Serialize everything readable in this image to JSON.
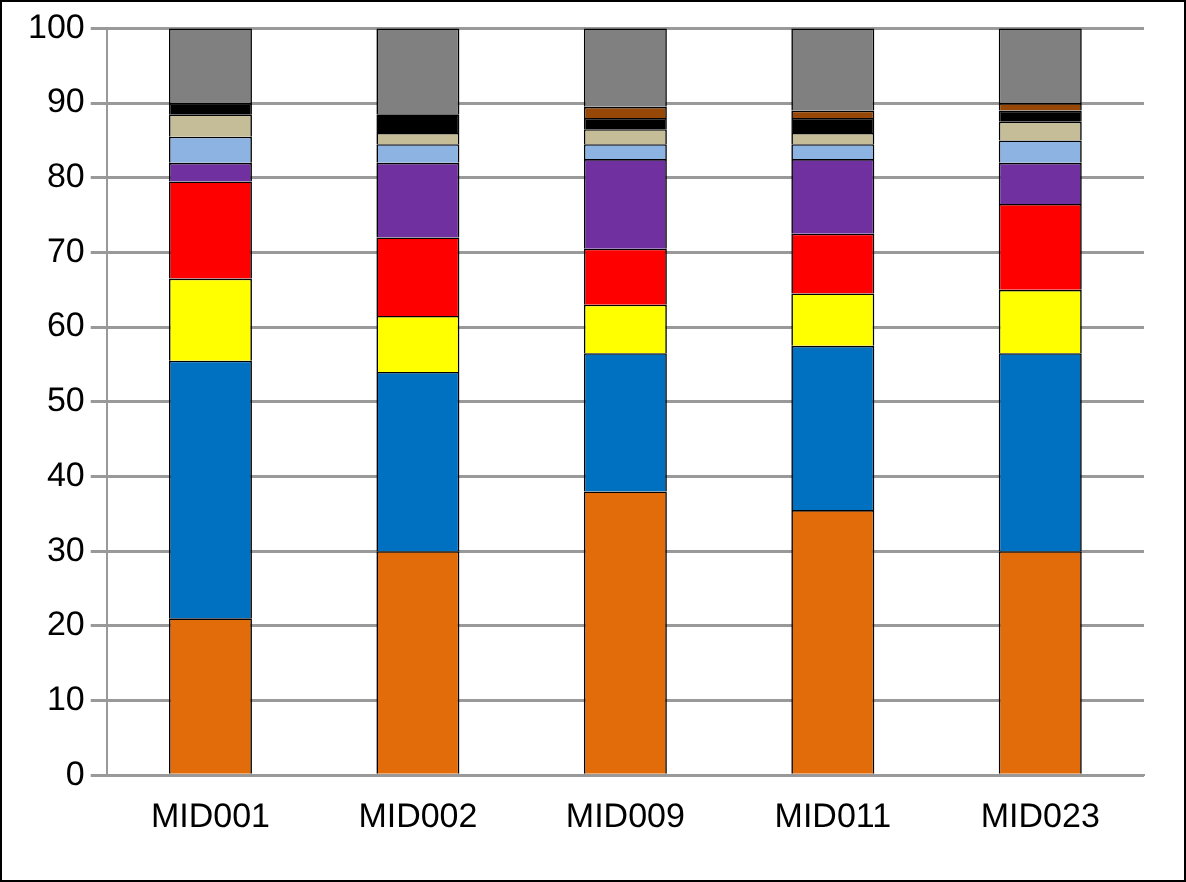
{
  "chart_data": {
    "type": "bar",
    "stacked": true,
    "categories": [
      "MID001",
      "MID002",
      "MID009",
      "MID011",
      "MID023"
    ],
    "series": [
      {
        "color": "#e36c0a",
        "values": [
          21,
          30,
          38,
          35.5,
          30
        ]
      },
      {
        "color": "#0070c0",
        "values": [
          34.5,
          24,
          18.5,
          22,
          26.5
        ]
      },
      {
        "color": "#ffff00",
        "values": [
          11,
          7.5,
          6.5,
          7,
          8.5
        ]
      },
      {
        "color": "#ff0000",
        "values": [
          13,
          10.5,
          7.5,
          8,
          11.5
        ]
      },
      {
        "color": "#7030a0",
        "values": [
          2.5,
          10,
          12,
          10,
          5.5
        ]
      },
      {
        "color": "#8db3e2",
        "values": [
          3.5,
          2.5,
          2,
          2,
          3
        ]
      },
      {
        "color": "#c4bd97",
        "values": [
          3,
          1.5,
          2,
          1.5,
          2.5
        ]
      },
      {
        "color": "#000000",
        "values": [
          1.5,
          2.5,
          1.5,
          2,
          1.5
        ]
      },
      {
        "color": "#974706",
        "values": [
          null,
          null,
          1.5,
          1,
          1
        ]
      },
      {
        "color": "#808080",
        "values": [
          10,
          11.5,
          10.5,
          11,
          10
        ]
      }
    ],
    "ylim": [
      0,
      100
    ],
    "yticks": [
      0,
      10,
      20,
      30,
      40,
      50,
      60,
      70,
      80,
      90,
      100
    ],
    "grid": "y",
    "legend": false
  }
}
